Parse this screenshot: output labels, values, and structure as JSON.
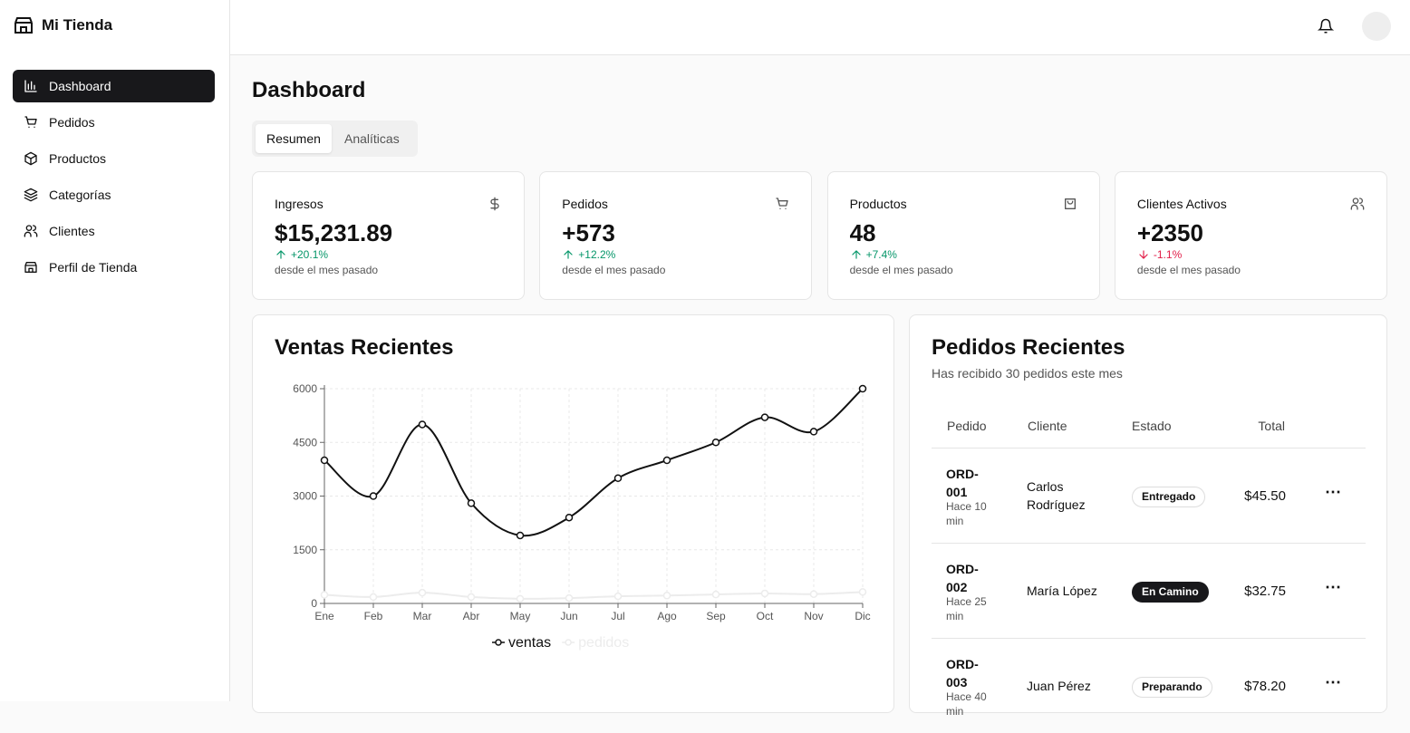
{
  "sidebar": {
    "brand": "Mi Tienda",
    "nav": [
      "Dashboard",
      "Pedidos",
      "Productos",
      "Categorías",
      "Clientes",
      "Perfil de Tienda"
    ],
    "active": 0
  },
  "page": {
    "title": "Dashboard",
    "tabs": [
      "Resumen",
      "Analíticas"
    ],
    "active_tab": 0
  },
  "stats": [
    {
      "label": "Ingresos",
      "value": "$15,231.89",
      "change": "+20.1%",
      "trend": "up",
      "note": "desde el mes pasado"
    },
    {
      "label": "Pedidos",
      "value": "+573",
      "change": "+12.2%",
      "trend": "up",
      "note": "desde el mes pasado"
    },
    {
      "label": "Productos",
      "value": "48",
      "change": "+7.4%",
      "trend": "up",
      "note": "desde el mes pasado"
    },
    {
      "label": "Clientes Activos",
      "value": "+2350",
      "change": "-1.1%",
      "trend": "down",
      "note": "desde el mes pasado"
    }
  ],
  "sales": {
    "title": "Ventas Recientes",
    "chart_data": {
      "type": "line",
      "categories": [
        "Ene",
        "Feb",
        "Mar",
        "Abr",
        "May",
        "Jun",
        "Jul",
        "Ago",
        "Sep",
        "Oct",
        "Nov",
        "Dic"
      ],
      "series": [
        {
          "name": "ventas",
          "color": "#111111",
          "values": [
            4000,
            3000,
            5000,
            2800,
            1900,
            2400,
            3500,
            4000,
            4500,
            5200,
            4800,
            6000
          ]
        },
        {
          "name": "pedidos",
          "color": "#ececec",
          "values": [
            240,
            180,
            300,
            180,
            130,
            150,
            200,
            220,
            250,
            280,
            260,
            320
          ]
        }
      ],
      "ylim": [
        0,
        6000
      ],
      "yticks": [
        0,
        1500,
        3000,
        4500,
        6000
      ],
      "grid": true,
      "legend": "bottom"
    }
  },
  "orders": {
    "title": "Pedidos Recientes",
    "subtitle": "Has recibido 30 pedidos este mes",
    "columns": [
      "Pedido",
      "Cliente",
      "Estado",
      "Total"
    ],
    "rows": [
      {
        "id": "ORD-001",
        "time": "Hace 10 min",
        "customer": "Carlos Rodríguez",
        "status": "Entregado",
        "status_style": "outline",
        "total": "$45.50"
      },
      {
        "id": "ORD-002",
        "time": "Hace 25 min",
        "customer": "María López",
        "status": "En Camino",
        "status_style": "solid",
        "total": "$32.75"
      },
      {
        "id": "ORD-003",
        "time": "Hace 40 min",
        "customer": "Juan Pérez",
        "status": "Preparando",
        "status_style": "outline",
        "total": "$78.20"
      }
    ]
  }
}
